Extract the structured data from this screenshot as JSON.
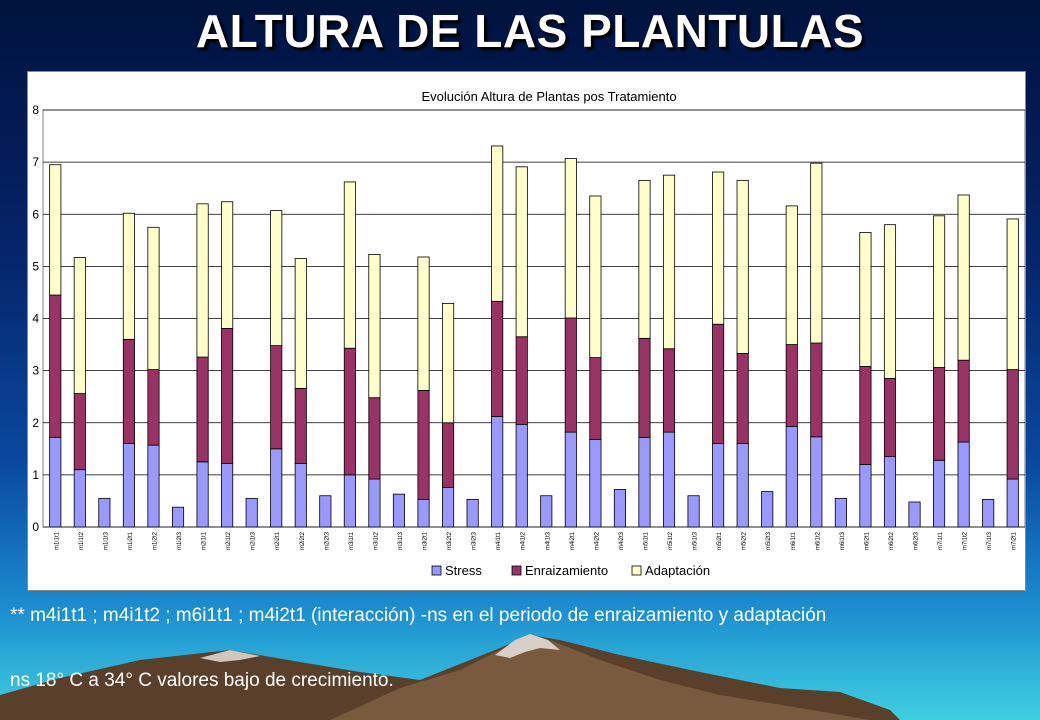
{
  "slide": {
    "title": "ALTURA DE LAS PLANTULAS",
    "note_1": "** m4i1t1 ; m4i1t2 ; m6i1t1 ; m4i2t1 (interacción) -ns en el periodo de enraizamiento y adaptación",
    "note_2": "ns 18° C a 34° C valores bajo de crecimiento."
  },
  "chart_data": {
    "type": "bar",
    "stacked": true,
    "title": "Evolución Altura de Plantas pos Tratamiento",
    "xlabel": "",
    "ylabel": "",
    "ylim": [
      0,
      8
    ],
    "yticks": [
      0,
      1,
      2,
      3,
      4,
      5,
      6,
      7,
      8
    ],
    "grid": true,
    "legend_position": "bottom",
    "categories": [
      "m1i1t1",
      "m1i1t2",
      "m1i1t3",
      "m1i2t1",
      "m1i2t2",
      "m1i2t3",
      "m2i1t1",
      "m2i1t2",
      "m2i1t3",
      "m2i2t1",
      "m2i2t2",
      "m2i2t3",
      "m3i1t1",
      "m3i1t2",
      "m3i1t3",
      "m3i2t1",
      "m3i2t2",
      "m3i2t3",
      "m4i1t1",
      "m4i1t2",
      "m4i1t3",
      "m4i2t1",
      "m4i2t2",
      "m4i2t3",
      "m5i1t1",
      "m5i1t2",
      "m5i1t3",
      "m5i2t1",
      "m5i2t2",
      "m5i2t3",
      "m6i1t1",
      "m6i1t2",
      "m6i1t3",
      "m6i2t1",
      "m6i2t2",
      "m6i2t3",
      "m7i1t1",
      "m7i1t2",
      "m7i1t3",
      "m7i2t1"
    ],
    "series": [
      {
        "name": "Stress",
        "color": "#9999ff",
        "values": [
          1.72,
          1.1,
          0.55,
          1.6,
          1.57,
          0.38,
          1.25,
          1.22,
          0.55,
          1.5,
          1.22,
          0.6,
          1.0,
          0.92,
          0.63,
          0.53,
          0.76,
          0.53,
          2.12,
          1.97,
          0.6,
          1.82,
          1.68,
          0.72,
          1.72,
          1.82,
          0.6,
          1.6,
          1.6,
          0.68,
          1.93,
          1.73,
          0.55,
          1.2,
          1.35,
          0.48,
          1.28,
          1.63,
          0.53,
          0.92
        ]
      },
      {
        "name": "Enraizamiento",
        "color": "#993366",
        "values": [
          2.73,
          1.46,
          0,
          2.0,
          1.45,
          0,
          2.01,
          2.59,
          0,
          1.98,
          1.44,
          0,
          2.43,
          1.56,
          0,
          2.09,
          1.24,
          0,
          2.21,
          1.68,
          0,
          2.19,
          1.57,
          0,
          1.9,
          1.6,
          0,
          2.29,
          1.73,
          0,
          1.57,
          1.8,
          0,
          1.88,
          1.5,
          0,
          1.78,
          1.57,
          0,
          2.1
        ]
      },
      {
        "name": "Adaptación",
        "color": "#ffffcc",
        "values": [
          2.5,
          2.61,
          0,
          2.42,
          2.73,
          0,
          2.94,
          2.43,
          0,
          2.59,
          2.49,
          0,
          3.19,
          2.75,
          0,
          2.56,
          2.29,
          0,
          2.98,
          3.26,
          0,
          3.06,
          3.1,
          0,
          3.03,
          3.33,
          0,
          2.92,
          3.32,
          0,
          2.66,
          3.45,
          0,
          2.57,
          2.95,
          0,
          2.91,
          3.17,
          0,
          2.89
        ]
      }
    ]
  }
}
